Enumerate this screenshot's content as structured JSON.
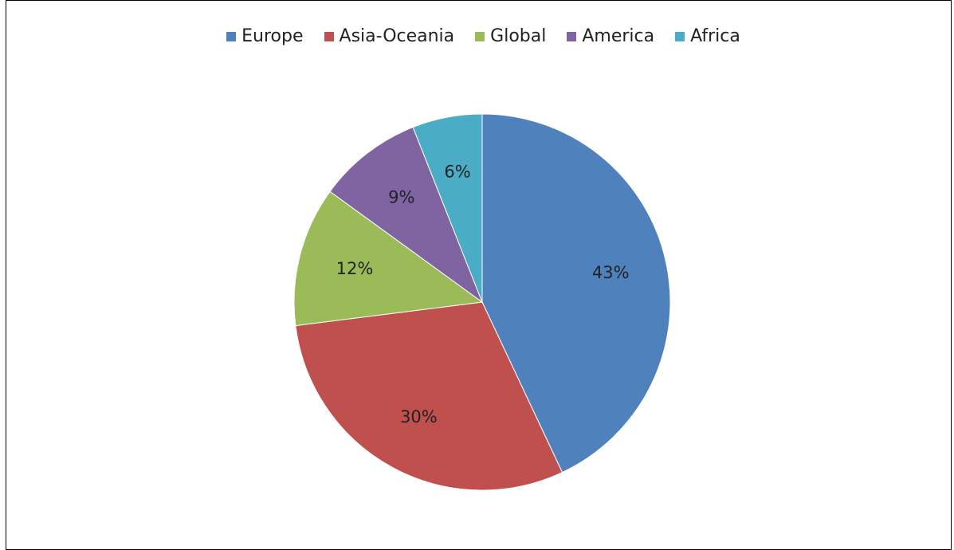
{
  "chart_data": {
    "type": "pie",
    "title": "",
    "legend_position": "top",
    "categories": [
      "Europe",
      "Asia-Oceania",
      "Global",
      "America",
      "Africa"
    ],
    "values": [
      43,
      30,
      12,
      9,
      6
    ],
    "labels": [
      "43%",
      "30%",
      "12%",
      "9%",
      "6%"
    ],
    "colors": [
      "#4f81bd",
      "#c0504d",
      "#9bbb59",
      "#8064a2",
      "#4bacc6"
    ]
  }
}
